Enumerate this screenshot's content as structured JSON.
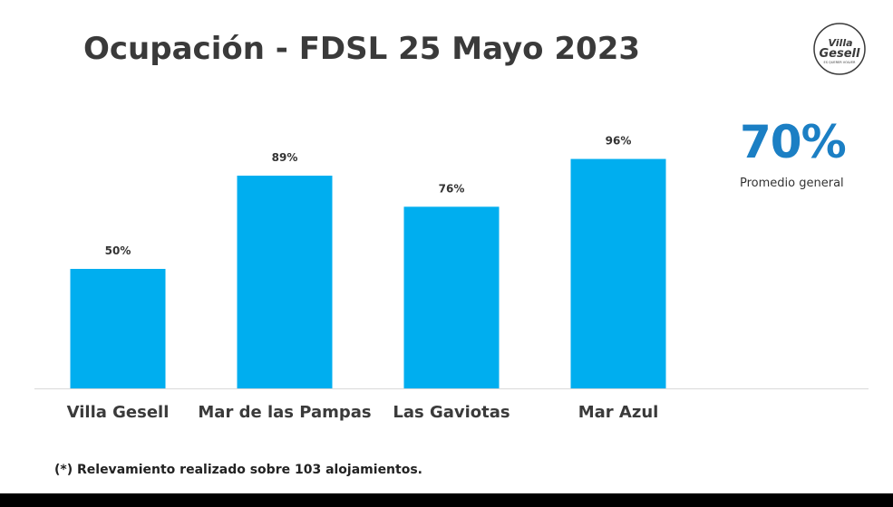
{
  "slide": {
    "title": "Ocupación - FDSL 25 Mayo 2023",
    "average_value": "70%",
    "average_label": "Promedio general",
    "footnote": "(*) Relevamiento realizado sobre 103 alojamientos.",
    "logo_text_top": "Villa",
    "logo_text_bottom": "Gesell",
    "logo_tagline": "ES QUERER VOLVER"
  },
  "colors": {
    "bar": "#00aeef",
    "accent": "#1b7fc4",
    "title": "#3a3a3a",
    "axis": "#d9d9d9"
  },
  "chart_data": {
    "type": "bar",
    "categories": [
      "Villa Gesell",
      "Mar de las Pampas",
      "Las Gaviotas",
      "Mar Azul"
    ],
    "values": [
      50,
      89,
      76,
      96
    ],
    "value_labels": [
      "50%",
      "89%",
      "76%",
      "96%"
    ],
    "title": "Ocupación - FDSL 25 Mayo 2023",
    "xlabel": "",
    "ylabel": "",
    "ylim": [
      0,
      100
    ],
    "grid": false,
    "legend": "none"
  }
}
